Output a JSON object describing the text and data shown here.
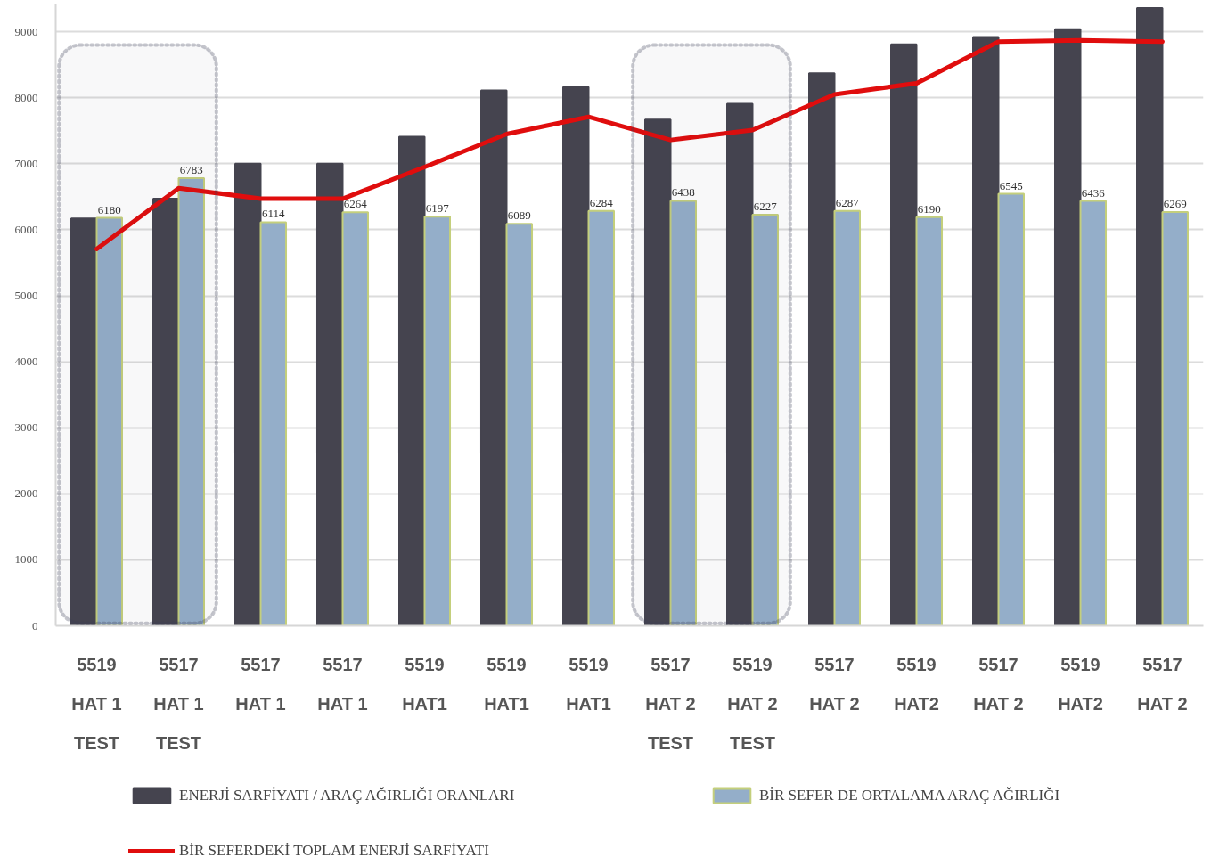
{
  "chart_data": {
    "type": "bar",
    "categories": [
      "5519\nHAT 1\nTEST",
      "5517\nHAT 1\nTEST",
      "5517\nHAT 1",
      "5517\nHAT 1",
      "5519\nHAT1",
      "5519\nHAT1",
      "5519\nHAT1",
      "5517\nHAT 2\nTEST",
      "5519\nHAT 2\nTEST",
      "5517\nHAT 2",
      "5519\nHAT2",
      "5517\nHAT 2",
      "5519\nHAT2",
      "5517\nHAT 2"
    ],
    "series": [
      {
        "name": "ENERJİ SARFİYATI / ARAÇ AĞIRLIĞI ORANLARI",
        "color": "#45444f",
        "values": [
          6170,
          6470,
          7000,
          7000,
          7410,
          8110,
          8160,
          7670,
          7910,
          8370,
          8810,
          8920,
          9040,
          9360
        ]
      },
      {
        "name": "BİR SEFER DE ORTALAMA ARAÇ AĞIRLIĞI",
        "color": "#94aec9",
        "values": [
          6180,
          6783,
          6114,
          6264,
          6197,
          6089,
          6284,
          6438,
          6227,
          6287,
          6190,
          6545,
          6436,
          6269
        ],
        "value_labels": [
          "6180",
          "6783",
          "6114",
          "6264",
          "6197",
          "6089",
          "6284",
          "6438",
          "6227",
          "6287",
          "6190",
          "6545",
          "6436",
          "6269"
        ]
      },
      {
        "type": "line",
        "name": "BİR SEFERDEKİ TOPLAM ENERJİ SARFİYATI",
        "color": "#e00d0d",
        "values": [
          5710,
          6630,
          6470,
          6470,
          6950,
          7450,
          7710,
          7360,
          7510,
          8050,
          8220,
          8850,
          8870,
          8850
        ]
      }
    ],
    "ylim": [
      0,
      9420
    ],
    "yticks": [
      0,
      1000,
      2000,
      3000,
      4000,
      5000,
      6000,
      7000,
      8000,
      9000
    ],
    "grid": "y",
    "legend": "bottom",
    "bands": [
      {
        "axis": "x",
        "from": "5519\nHAT 1\nTEST",
        "to": "5517\nHAT 1\nTEST",
        "color": "#3c3f55"
      },
      {
        "axis": "x",
        "from": "5517\nHAT 2\nTEST",
        "to": "5519\nHAT 2\nTEST",
        "color": "#3c3f55"
      }
    ]
  }
}
